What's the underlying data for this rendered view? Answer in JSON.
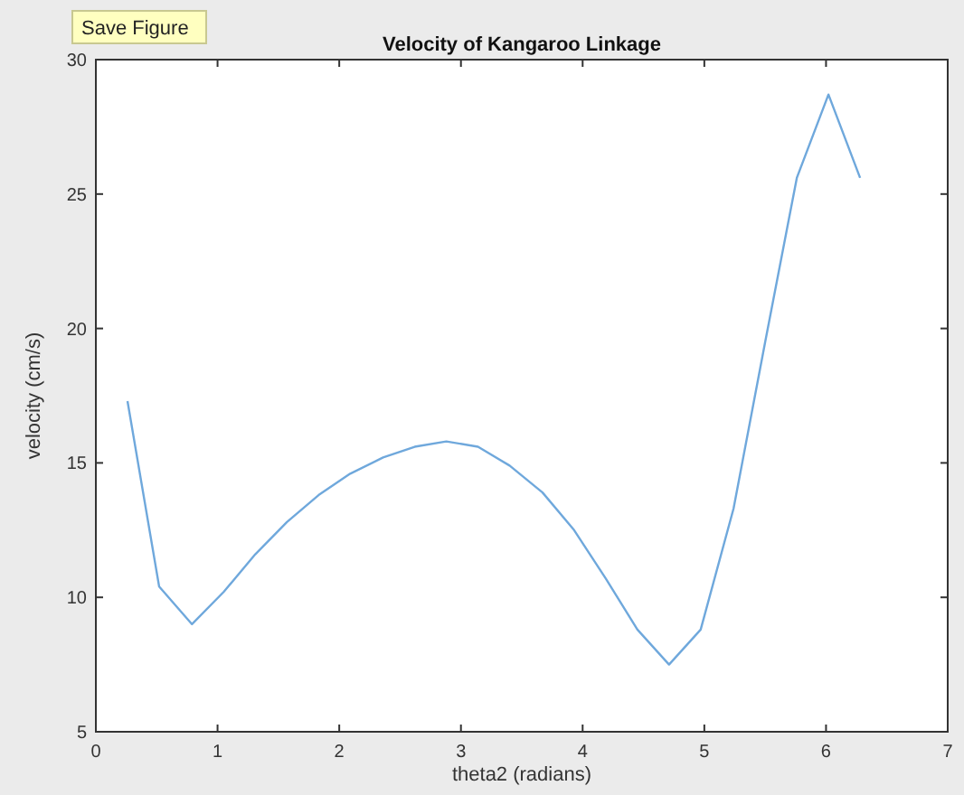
{
  "chart_data": {
    "type": "line",
    "title": "Velocity of Kangaroo Linkage",
    "xlabel": "theta2 (radians)",
    "ylabel": "velocity (cm/s)",
    "annotations": [
      "Save Figure"
    ],
    "x": [
      0.26,
      0.52,
      0.79,
      1.05,
      1.31,
      1.57,
      1.83,
      2.09,
      2.36,
      2.62,
      2.88,
      3.14,
      3.4,
      3.67,
      3.93,
      4.19,
      4.45,
      4.71,
      4.97,
      5.24,
      5.5,
      5.76,
      6.02,
      6.28
    ],
    "series": [
      {
        "color": "#6fa8dc",
        "values": [
          17.3,
          10.4,
          9.0,
          10.2,
          11.6,
          12.8,
          13.8,
          14.6,
          15.2,
          15.6,
          15.8,
          15.6,
          14.9,
          13.9,
          12.5,
          10.7,
          8.8,
          7.5,
          8.8,
          13.3,
          19.5,
          25.6,
          28.7,
          25.6
        ]
      }
    ],
    "xlim": [
      0,
      7
    ],
    "xticks": [
      0,
      1,
      2,
      3,
      4,
      5,
      6,
      7
    ],
    "ylim": [
      5,
      30
    ],
    "yticks": [
      5,
      10,
      15,
      20,
      25,
      30
    ],
    "grid": false
  }
}
